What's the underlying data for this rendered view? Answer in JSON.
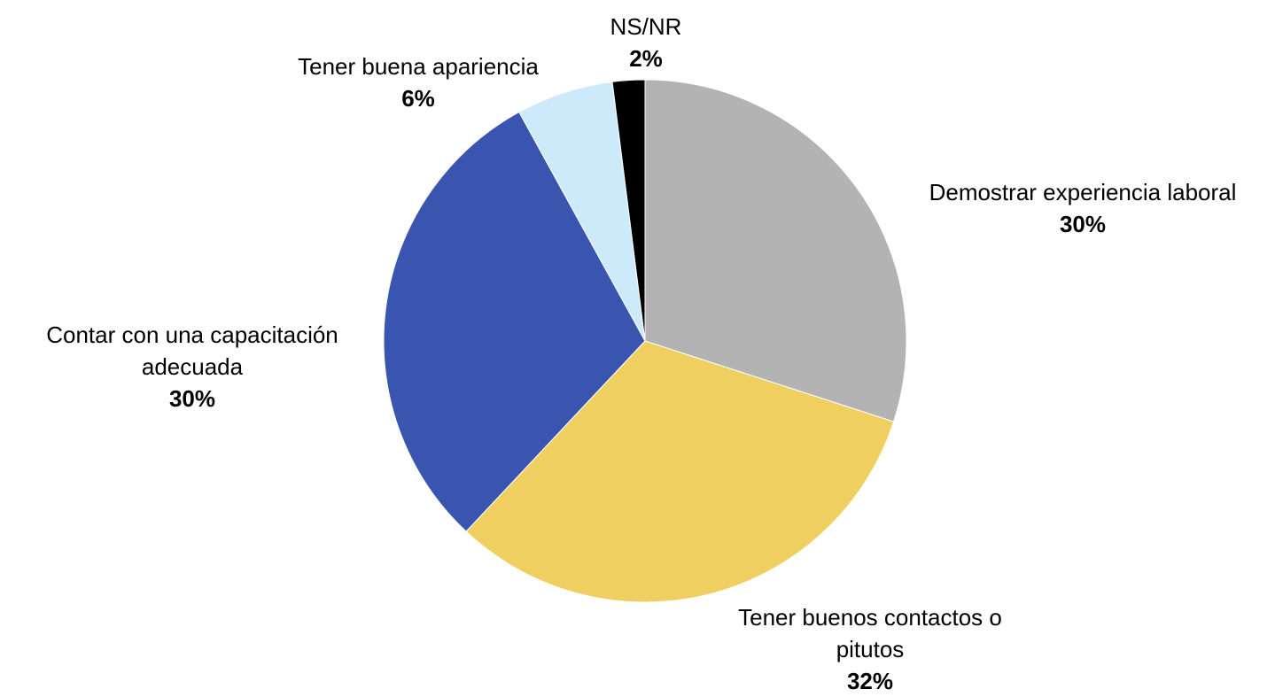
{
  "chart_data": {
    "type": "pie",
    "categories": [
      "Demostrar experiencia laboral",
      "Tener buenos contactos o pitutos",
      "Contar con una capacitación adecuada",
      "Tener buena apariencia",
      "NS/NR"
    ],
    "values": [
      30,
      32,
      30,
      6,
      2
    ],
    "value_labels": [
      "30%",
      "32%",
      "30%",
      "6%",
      "2%"
    ],
    "colors": [
      "#b3b3b3",
      "#efcf60",
      "#3955b0",
      "#cdeafb",
      "#000000"
    ]
  }
}
